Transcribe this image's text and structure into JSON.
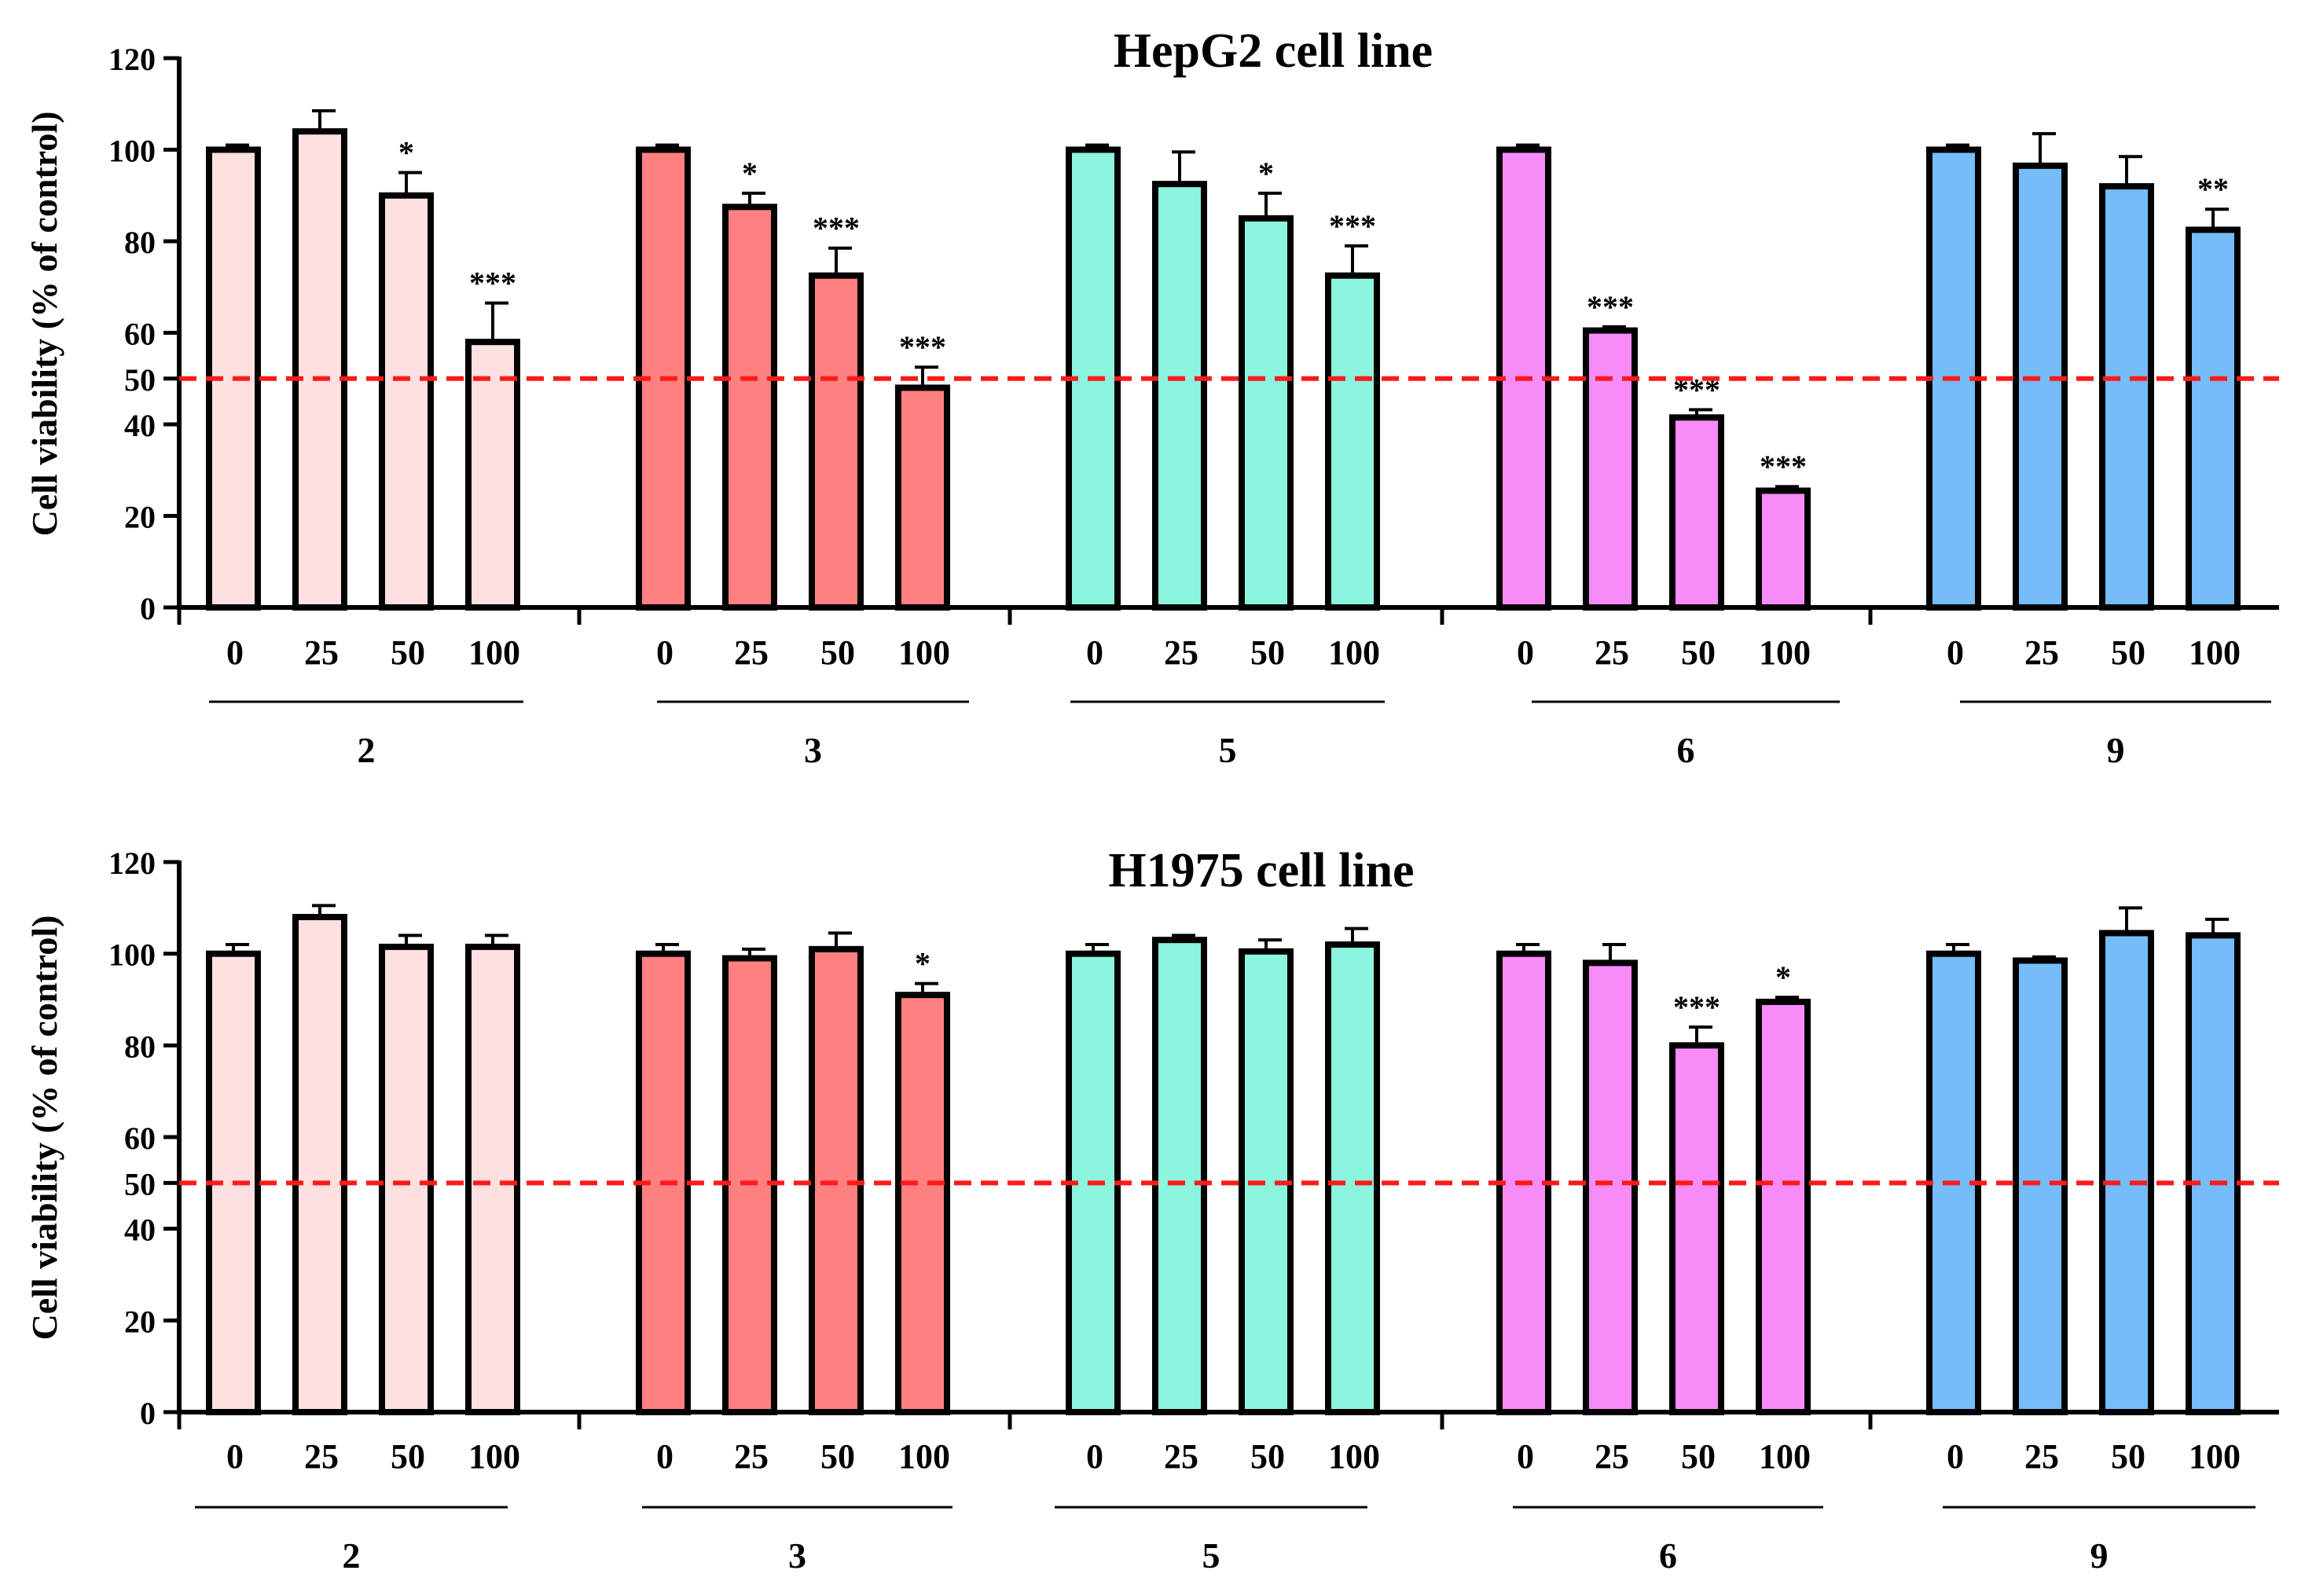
{
  "reference_line": {
    "value": 50,
    "color": "#ff1a1a"
  },
  "group_colors": {
    "2": "#ffe0e0",
    "3": "#ff8080",
    "5": "#8cf5df",
    "6": "#f78cf8",
    "9": "#75bcf9"
  },
  "chart_data": [
    {
      "type": "bar",
      "title": "HepG2 cell line",
      "ylabel": "Cell viability (% of control)",
      "xlabel": "",
      "ylim": [
        0,
        120
      ],
      "yticks": [
        0,
        20,
        40,
        50,
        60,
        80,
        100,
        120
      ],
      "categories": [
        "0",
        "25",
        "50",
        "100"
      ],
      "groups": [
        {
          "name": "2",
          "values": [
            100,
            104,
            90,
            58
          ],
          "errors": [
            1,
            4.5,
            5,
            8.5
          ],
          "sig": [
            "",
            "",
            "*",
            "***"
          ]
        },
        {
          "name": "3",
          "values": [
            100,
            87.5,
            72.5,
            48
          ],
          "errors": [
            1,
            3,
            6,
            4.5
          ],
          "sig": [
            "",
            "*",
            "***",
            "***"
          ]
        },
        {
          "name": "5",
          "values": [
            100,
            92.5,
            85,
            72.5
          ],
          "errors": [
            1,
            7,
            5.5,
            6.5
          ],
          "sig": [
            "",
            "",
            "*",
            "***"
          ]
        },
        {
          "name": "6",
          "values": [
            100,
            60.5,
            41.5,
            25.5
          ],
          "errors": [
            1,
            0.8,
            1.7,
            0.9
          ],
          "sig": [
            "",
            "***",
            "***",
            "***"
          ]
        },
        {
          "name": "9",
          "values": [
            100,
            96.5,
            92,
            82.5
          ],
          "errors": [
            1,
            7,
            6.5,
            4.5
          ],
          "sig": [
            "",
            "",
            "",
            "**"
          ]
        }
      ]
    },
    {
      "type": "bar",
      "title": "H1975 cell line",
      "ylabel": "Cell viability (% of control)",
      "xlabel": "",
      "ylim": [
        0,
        120
      ],
      "yticks": [
        0,
        20,
        40,
        50,
        60,
        80,
        100,
        120
      ],
      "categories": [
        "0",
        "25",
        "50",
        "100"
      ],
      "groups": [
        {
          "name": "2",
          "values": [
            100,
            108,
            101.5,
            101.5
          ],
          "errors": [
            2,
            2.5,
            2.5,
            2.5
          ],
          "sig": [
            "",
            "",
            "",
            ""
          ]
        },
        {
          "name": "3",
          "values": [
            100,
            99,
            101,
            91
          ],
          "errors": [
            2,
            2,
            3.5,
            2.5
          ],
          "sig": [
            "",
            "",
            "",
            "*"
          ]
        },
        {
          "name": "5",
          "values": [
            100,
            103,
            100.5,
            102
          ],
          "errors": [
            2,
            1,
            2.5,
            3.5
          ],
          "sig": [
            "",
            "",
            "",
            ""
          ]
        },
        {
          "name": "6",
          "values": [
            100,
            98,
            80,
            89.5
          ],
          "errors": [
            2,
            4,
            4,
            1
          ],
          "sig": [
            "",
            "",
            "***",
            "*"
          ]
        },
        {
          "name": "9",
          "values": [
            100,
            98.5,
            104.5,
            104
          ],
          "errors": [
            2,
            0.8,
            5.5,
            3.5
          ],
          "sig": [
            "",
            "",
            "",
            ""
          ]
        }
      ]
    }
  ]
}
